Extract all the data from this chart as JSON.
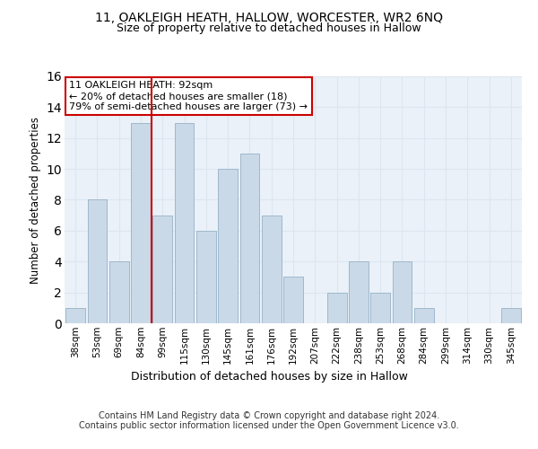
{
  "title_line1": "11, OAKLEIGH HEATH, HALLOW, WORCESTER, WR2 6NQ",
  "title_line2": "Size of property relative to detached houses in Hallow",
  "xlabel": "Distribution of detached houses by size in Hallow",
  "ylabel": "Number of detached properties",
  "bar_labels": [
    "38sqm",
    "53sqm",
    "69sqm",
    "84sqm",
    "99sqm",
    "115sqm",
    "130sqm",
    "145sqm",
    "161sqm",
    "176sqm",
    "192sqm",
    "207sqm",
    "222sqm",
    "238sqm",
    "253sqm",
    "268sqm",
    "284sqm",
    "299sqm",
    "314sqm",
    "330sqm",
    "345sqm"
  ],
  "bar_values": [
    1,
    8,
    4,
    13,
    7,
    13,
    6,
    10,
    11,
    7,
    3,
    0,
    2,
    4,
    2,
    4,
    1,
    0,
    0,
    0,
    1
  ],
  "bar_color": "#c9d9e8",
  "bar_edge_color": "#a0b8cc",
  "vline_x": 3.5,
  "vline_color": "#cc0000",
  "annotation_text": "11 OAKLEIGH HEATH: 92sqm\n← 20% of detached houses are smaller (18)\n79% of semi-detached houses are larger (73) →",
  "annotation_box_color": "#ffffff",
  "annotation_box_edge": "#cc0000",
  "ylim": [
    0,
    16
  ],
  "yticks": [
    0,
    2,
    4,
    6,
    8,
    10,
    12,
    14,
    16
  ],
  "grid_color": "#dde6f0",
  "bg_color": "#eaf1f8",
  "footer": "Contains HM Land Registry data © Crown copyright and database right 2024.\nContains public sector information licensed under the Open Government Licence v3.0."
}
